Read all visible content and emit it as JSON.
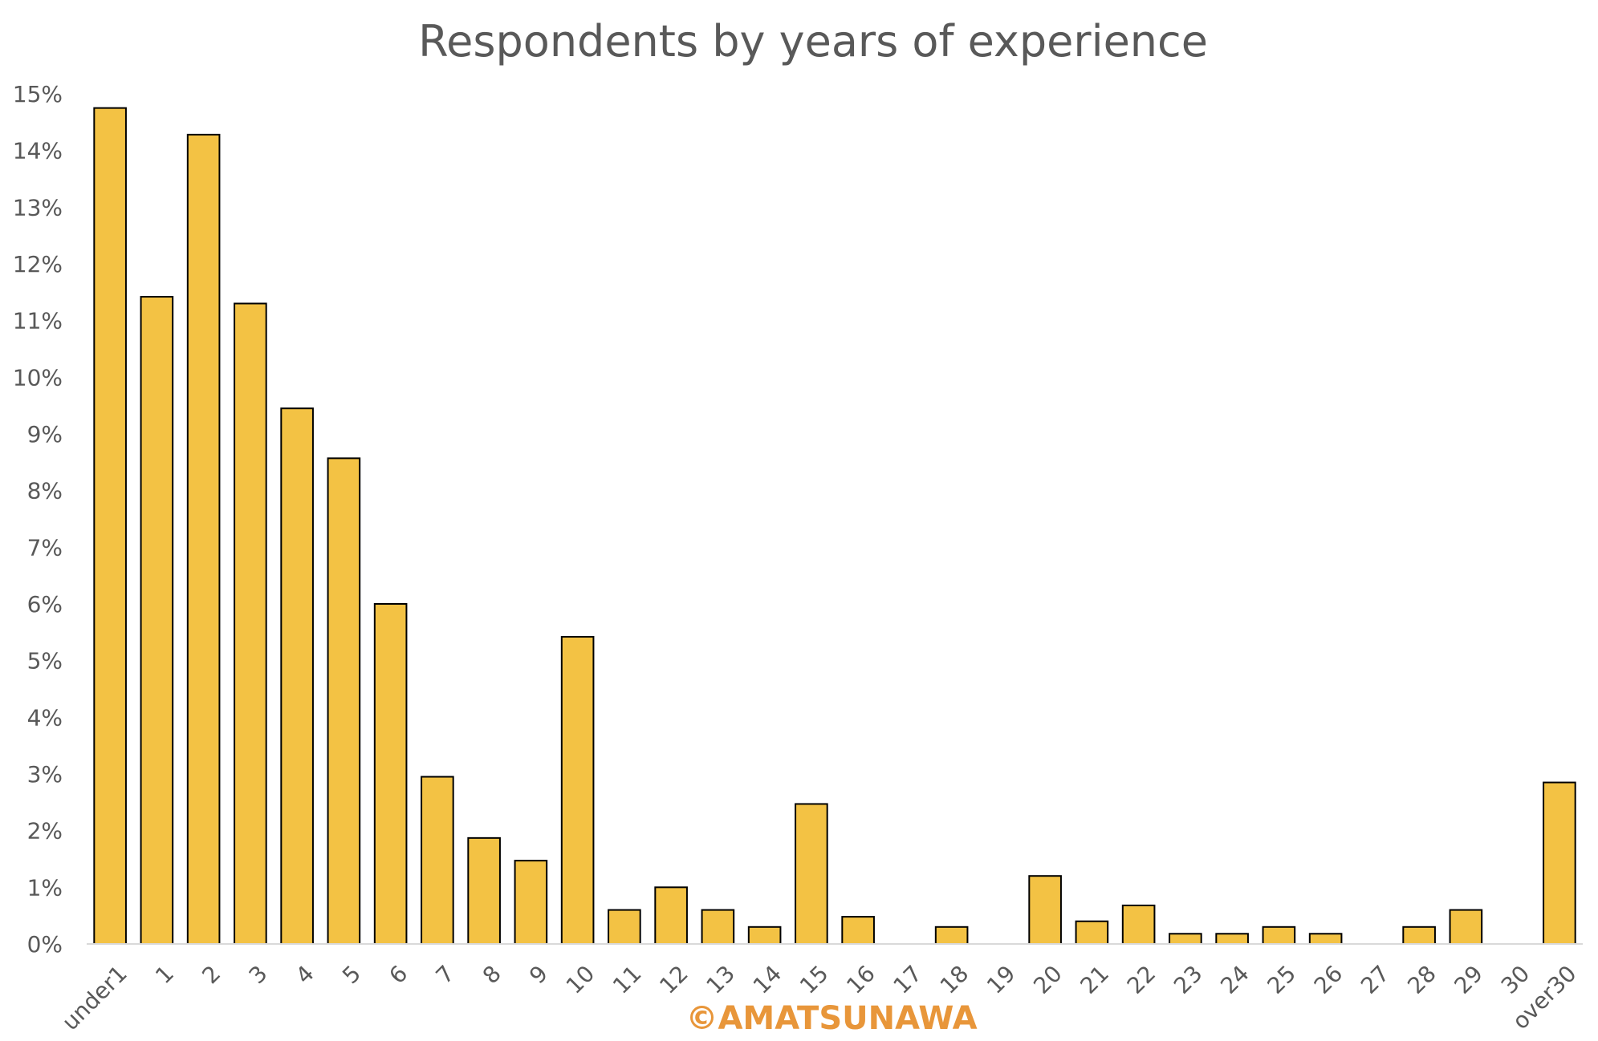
{
  "chart_data": {
    "type": "bar",
    "title": "Respondents by years of experience",
    "xlabel": "",
    "ylabel": "",
    "ylim": [
      0,
      15
    ],
    "yticks": [
      "0%",
      "1%",
      "2%",
      "3%",
      "4%",
      "5%",
      "6%",
      "7%",
      "8%",
      "9%",
      "10%",
      "11%",
      "12%",
      "13%",
      "14%",
      "15%"
    ],
    "grid": false,
    "legend": "none",
    "categories": [
      "under1",
      "1",
      "2",
      "3",
      "4",
      "5",
      "6",
      "7",
      "8",
      "9",
      "10",
      "11",
      "12",
      "13",
      "14",
      "15",
      "16",
      "17",
      "18",
      "19",
      "20",
      "21",
      "22",
      "23",
      "24",
      "25",
      "26",
      "27",
      "28",
      "29",
      "30",
      "over30"
    ],
    "values": [
      14.75,
      11.42,
      14.28,
      11.3,
      9.45,
      8.57,
      6.0,
      2.95,
      1.87,
      1.47,
      5.42,
      0.6,
      1.0,
      0.6,
      0.3,
      2.47,
      0.48,
      0,
      0.3,
      0,
      1.2,
      0.4,
      0.68,
      0.18,
      0.18,
      0.3,
      0.18,
      0,
      0.3,
      0.6,
      0,
      2.85
    ],
    "bar_color": "#F3C244",
    "bar_outline": "#000000",
    "watermark": "©AMATSUNAWA",
    "watermark_color": "#E8963A"
  }
}
